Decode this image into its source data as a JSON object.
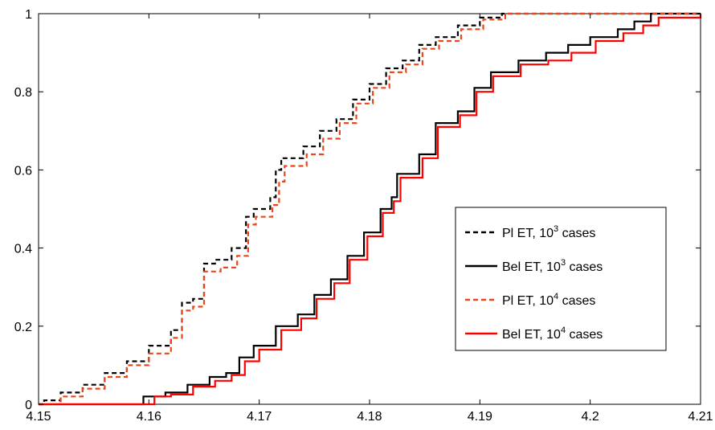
{
  "chart_data": {
    "type": "line",
    "xlim": [
      4.15,
      4.21
    ],
    "ylim": [
      0,
      1
    ],
    "xticks": [
      "4.15",
      "4.16",
      "4.17",
      "4.18",
      "4.19",
      "4.2",
      "4.21"
    ],
    "yticks": [
      "0",
      "0.2",
      "0.4",
      "0.6",
      "0.8",
      "1"
    ],
    "grid": false,
    "legend_position": "right",
    "series": [
      {
        "name": "Pl ET, 10^3 cases",
        "label_main": "Pl ET, 10",
        "label_exp": "3",
        "label_suffix": " cases",
        "color": "#000000",
        "dash": "6,4",
        "x": [
          4.15,
          4.1505,
          4.152,
          4.154,
          4.156,
          4.158,
          4.16,
          4.162,
          4.163,
          4.164,
          4.165,
          4.166,
          4.1675,
          4.1688,
          4.1695,
          4.171,
          4.1715,
          4.172,
          4.174,
          4.1755,
          4.177,
          4.1785,
          4.18,
          4.1815,
          4.183,
          4.1845,
          4.186,
          4.188,
          4.19,
          4.192,
          4.2,
          4.21
        ],
        "y": [
          0.0,
          0.01,
          0.03,
          0.05,
          0.08,
          0.11,
          0.15,
          0.19,
          0.26,
          0.27,
          0.36,
          0.37,
          0.4,
          0.48,
          0.5,
          0.53,
          0.6,
          0.63,
          0.66,
          0.7,
          0.73,
          0.78,
          0.82,
          0.86,
          0.88,
          0.92,
          0.94,
          0.97,
          0.99,
          1.0,
          1.0,
          1.0
        ]
      },
      {
        "name": "Bel ET, 10^3 cases",
        "label_main": "Bel ET, 10",
        "label_exp": "3",
        "label_suffix": " cases",
        "color": "#000000",
        "dash": "",
        "x": [
          4.15,
          4.157,
          4.1595,
          4.1615,
          4.1635,
          4.1655,
          4.167,
          4.1682,
          4.1695,
          4.1715,
          4.1735,
          4.175,
          4.1765,
          4.178,
          4.1795,
          4.181,
          4.182,
          4.1825,
          4.1845,
          4.186,
          4.188,
          4.1895,
          4.191,
          4.1935,
          4.196,
          4.198,
          4.2,
          4.2025,
          4.204,
          4.2055,
          4.21
        ],
        "y": [
          0.0,
          0.0,
          0.02,
          0.03,
          0.05,
          0.07,
          0.08,
          0.12,
          0.15,
          0.2,
          0.23,
          0.28,
          0.32,
          0.38,
          0.44,
          0.5,
          0.53,
          0.59,
          0.64,
          0.72,
          0.75,
          0.81,
          0.85,
          0.88,
          0.9,
          0.92,
          0.94,
          0.96,
          0.98,
          1.0,
          1.0
        ]
      },
      {
        "name": "Pl ET, 10^4 cases",
        "label_main": "Pl ET, 10",
        "label_exp": "4",
        "label_suffix": " cases",
        "color": "#e8471c",
        "dash": "6,4",
        "x": [
          4.15,
          4.1505,
          4.152,
          4.154,
          4.156,
          4.158,
          4.16,
          4.162,
          4.163,
          4.164,
          4.165,
          4.1665,
          4.168,
          4.169,
          4.1697,
          4.1712,
          4.1718,
          4.1723,
          4.1743,
          4.1758,
          4.1773,
          4.1788,
          4.1803,
          4.1818,
          4.1833,
          4.1848,
          4.1863,
          4.1883,
          4.1903,
          4.1923,
          4.2,
          4.21
        ],
        "y": [
          0.0,
          0.0,
          0.02,
          0.04,
          0.07,
          0.1,
          0.13,
          0.17,
          0.24,
          0.25,
          0.34,
          0.35,
          0.38,
          0.46,
          0.48,
          0.51,
          0.57,
          0.61,
          0.64,
          0.68,
          0.72,
          0.77,
          0.81,
          0.85,
          0.87,
          0.91,
          0.93,
          0.96,
          0.985,
          1.0,
          1.0,
          1.0
        ]
      },
      {
        "name": "Bel ET, 10^4 cases",
        "label_main": "Bel ET, 10",
        "label_exp": "4",
        "label_suffix": " cases",
        "color": "#ff0000",
        "dash": "",
        "x": [
          4.15,
          4.158,
          4.1605,
          4.162,
          4.164,
          4.166,
          4.1675,
          4.1687,
          4.17,
          4.172,
          4.1738,
          4.1752,
          4.1768,
          4.1782,
          4.1798,
          4.1812,
          4.1822,
          4.1828,
          4.1848,
          4.1862,
          4.1882,
          4.1897,
          4.1912,
          4.1937,
          4.1962,
          4.1983,
          4.2005,
          4.203,
          4.2048,
          4.2062,
          4.21
        ],
        "y": [
          0.0,
          0.0,
          0.02,
          0.025,
          0.045,
          0.06,
          0.075,
          0.11,
          0.14,
          0.19,
          0.22,
          0.27,
          0.31,
          0.37,
          0.43,
          0.49,
          0.52,
          0.58,
          0.63,
          0.71,
          0.74,
          0.8,
          0.84,
          0.87,
          0.88,
          0.9,
          0.93,
          0.95,
          0.97,
          0.99,
          1.0
        ]
      }
    ]
  }
}
